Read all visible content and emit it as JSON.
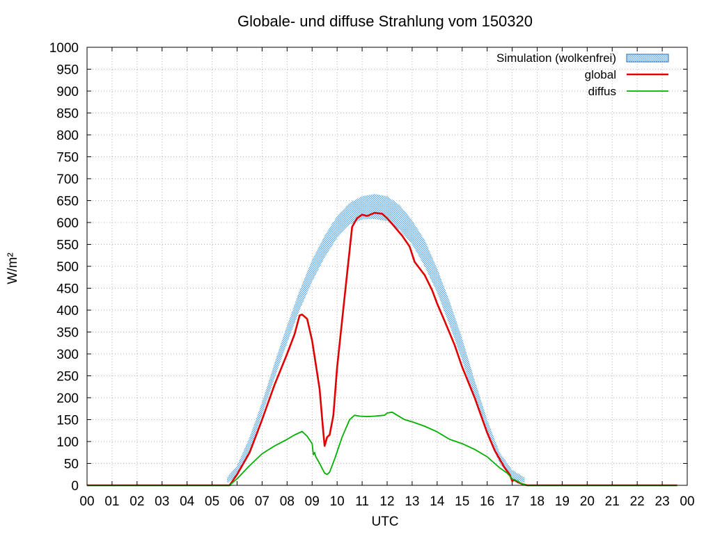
{
  "chart_data": {
    "type": "line",
    "title": "Globale- und diffuse Strahlung vom 150320",
    "xlabel": "UTC",
    "ylabel": "W/m²",
    "xlim": [
      0,
      24
    ],
    "ylim": [
      0,
      1000
    ],
    "x_ticks": [
      "00",
      "01",
      "02",
      "03",
      "04",
      "05",
      "06",
      "07",
      "08",
      "09",
      "10",
      "11",
      "12",
      "13",
      "14",
      "15",
      "16",
      "17",
      "18",
      "19",
      "20",
      "21",
      "22",
      "23",
      "00"
    ],
    "y_ticks": [
      0,
      50,
      100,
      150,
      200,
      250,
      300,
      350,
      400,
      450,
      500,
      550,
      600,
      650,
      700,
      750,
      800,
      850,
      900,
      950,
      1000
    ],
    "grid": true,
    "legend_position": "top-right",
    "colors": {
      "simulation": "#5aa9e6",
      "global": "#e00000",
      "diffus": "#00b000"
    },
    "series": [
      {
        "name": "Simulation (wolkenfrei)",
        "kind": "band",
        "x": [
          5.6,
          6.0,
          6.5,
          7.0,
          7.5,
          8.0,
          8.5,
          9.0,
          9.5,
          10.0,
          10.5,
          11.0,
          11.5,
          12.0,
          12.5,
          13.0,
          13.5,
          14.0,
          14.5,
          15.0,
          15.5,
          16.0,
          16.5,
          17.0,
          17.5
        ],
        "upper": [
          18,
          45,
          110,
          190,
          280,
          365,
          445,
          515,
          570,
          615,
          645,
          660,
          665,
          660,
          640,
          605,
          560,
          495,
          420,
          335,
          240,
          150,
          75,
          35,
          18
        ],
        "lower": [
          5,
          20,
          80,
          160,
          245,
          325,
          400,
          465,
          520,
          565,
          595,
          607,
          608,
          603,
          583,
          550,
          500,
          440,
          365,
          285,
          195,
          115,
          50,
          15,
          5
        ]
      },
      {
        "name": "global",
        "kind": "line",
        "x": [
          0,
          5.7,
          6.0,
          6.5,
          7.0,
          7.5,
          8.0,
          8.3,
          8.5,
          8.6,
          8.8,
          9.0,
          9.3,
          9.45,
          9.5,
          9.6,
          9.7,
          9.85,
          10.0,
          10.3,
          10.6,
          10.8,
          11.0,
          11.2,
          11.5,
          11.8,
          12.0,
          12.3,
          12.6,
          12.9,
          13.1,
          13.5,
          13.8,
          14.0,
          14.3,
          14.7,
          15.0,
          15.5,
          16.0,
          16.3,
          16.7,
          16.9,
          17.0,
          17.1,
          17.2,
          17.4,
          17.6,
          23.6
        ],
        "y": [
          0,
          0,
          25,
          75,
          150,
          230,
          300,
          345,
          388,
          390,
          380,
          330,
          220,
          120,
          90,
          110,
          115,
          160,
          270,
          430,
          590,
          610,
          618,
          615,
          622,
          620,
          610,
          590,
          570,
          545,
          510,
          480,
          445,
          415,
          375,
          320,
          270,
          200,
          120,
          80,
          40,
          25,
          10,
          12,
          8,
          3,
          0,
          0
        ]
      },
      {
        "name": "diffus",
        "kind": "line",
        "x": [
          0,
          5.7,
          6.0,
          6.5,
          7.0,
          7.5,
          8.0,
          8.3,
          8.6,
          8.8,
          9.0,
          9.05,
          9.1,
          9.15,
          9.3,
          9.5,
          9.6,
          9.7,
          9.9,
          10.2,
          10.5,
          10.7,
          10.9,
          11.2,
          11.5,
          11.9,
          12.0,
          12.2,
          12.4,
          12.7,
          13.0,
          13.5,
          14.0,
          14.5,
          15.0,
          15.5,
          16.0,
          16.5,
          16.8,
          17.0,
          17.1,
          17.2,
          17.4,
          17.6,
          23.6
        ],
        "y": [
          0,
          0,
          15,
          45,
          72,
          90,
          105,
          115,
          123,
          112,
          95,
          70,
          75,
          65,
          50,
          28,
          25,
          30,
          60,
          110,
          150,
          160,
          158,
          157,
          158,
          160,
          165,
          167,
          160,
          150,
          145,
          135,
          122,
          105,
          95,
          82,
          65,
          40,
          28,
          15,
          12,
          10,
          3,
          0,
          0
        ]
      }
    ]
  }
}
